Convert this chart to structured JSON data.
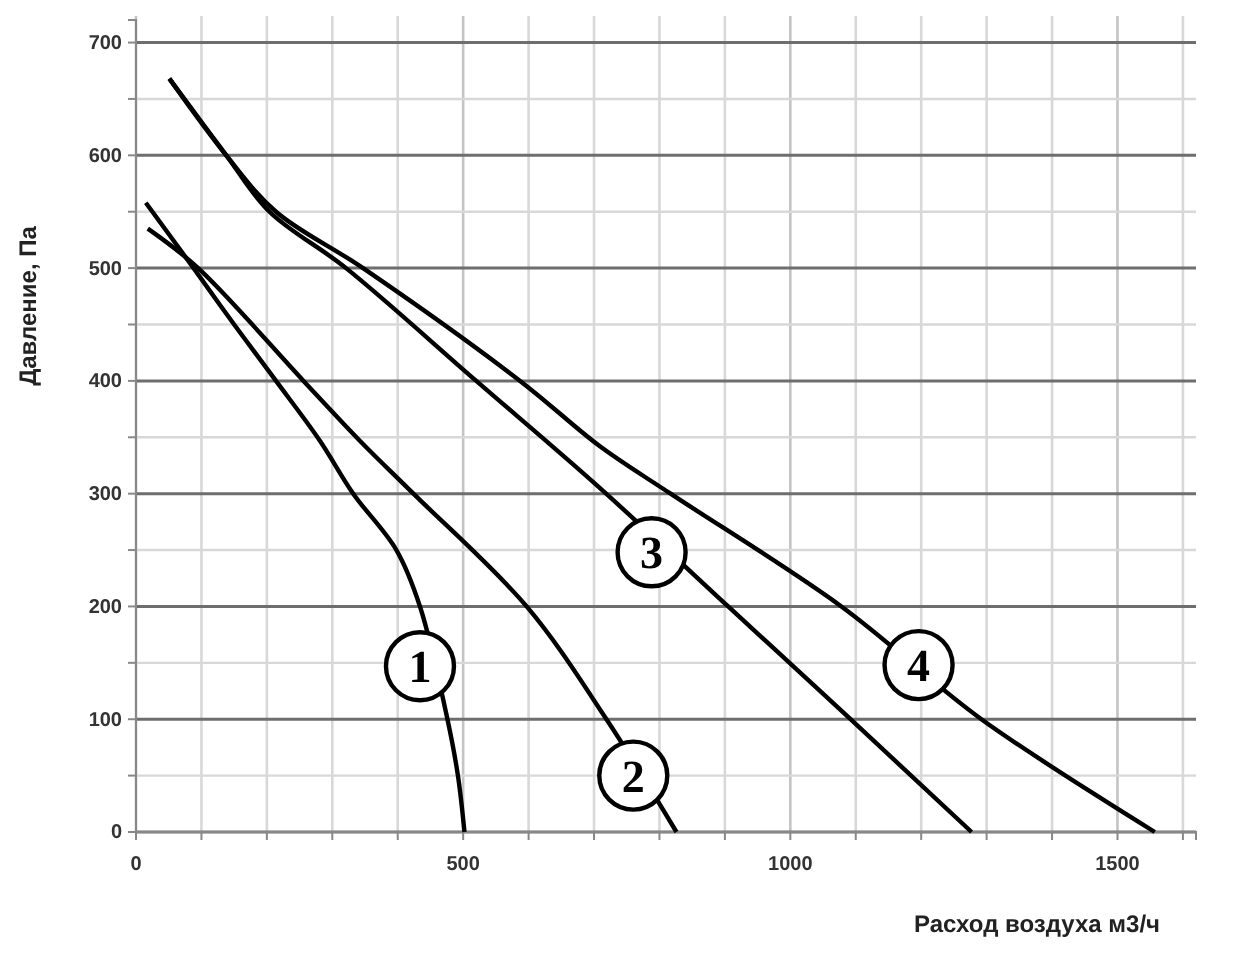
{
  "chart_data": {
    "type": "line",
    "xlabel": "Расход воздуха  м3/ч",
    "ylabel": "Давление, Па",
    "xlim": [
      0,
      1620
    ],
    "ylim": [
      0,
      720
    ],
    "xticks": [
      0,
      {
        "value": 100,
        "label": null
      },
      {
        "value": 200,
        "label": null
      },
      {
        "value": 300,
        "label": null
      },
      {
        "value": 400,
        "label": null
      },
      500,
      {
        "value": 600,
        "label": null
      },
      {
        "value": 700,
        "label": null
      },
      {
        "value": 800,
        "label": null
      },
      {
        "value": 900,
        "label": null
      },
      1000,
      {
        "value": 1100,
        "label": null
      },
      {
        "value": 1200,
        "label": null
      },
      {
        "value": 1300,
        "label": null
      },
      {
        "value": 1400,
        "label": null
      },
      1500,
      {
        "value": 1600,
        "label": null
      }
    ],
    "yticks": [
      0,
      {
        "value": 50,
        "label": null
      },
      100,
      {
        "value": 150,
        "label": null
      },
      200,
      {
        "value": 250,
        "label": null
      },
      300,
      {
        "value": 350,
        "label": null
      },
      400,
      {
        "value": 450,
        "label": null
      },
      500,
      {
        "value": 550,
        "label": null
      },
      600,
      {
        "value": 650,
        "label": null
      },
      700
    ],
    "grid": true,
    "marker": "none",
    "line_style": "solid",
    "series": [
      {
        "color": "#000000",
        "x": [
          15,
          88,
          150,
          214,
          281,
          332,
          398,
          434,
          476,
          492,
          502
        ],
        "values": [
          558,
          500,
          450,
          400,
          347,
          300,
          250,
          200,
          100,
          50,
          0
        ]
      },
      {
        "color": "#000000",
        "x": [
          18,
          95,
          256,
          342,
          424,
          597,
          719,
          826
        ],
        "values": [
          535,
          500,
          400,
          347,
          300,
          200,
          100,
          0
        ]
      },
      {
        "color": "#000000",
        "x": [
          51,
          138,
          204,
          321,
          520,
          707,
          905,
          1092,
          1277
        ],
        "values": [
          668,
          600,
          550,
          500,
          400,
          306,
          200,
          100,
          0
        ]
      },
      {
        "color": "#000000",
        "x": [
          51,
          138,
          214,
          347,
          587,
          709,
          817,
          1078,
          1292,
          1557
        ],
        "values": [
          668,
          600,
          550,
          500,
          400,
          342,
          300,
          200,
          100,
          0
        ]
      }
    ],
    "annotations": [
      {
        "text": "1",
        "x": 434,
        "y": 147
      },
      {
        "text": "2",
        "x": 760,
        "y": 50
      },
      {
        "text": "3",
        "x": 788,
        "y": 248
      },
      {
        "text": "4",
        "x": 1196,
        "y": 148
      }
    ]
  }
}
